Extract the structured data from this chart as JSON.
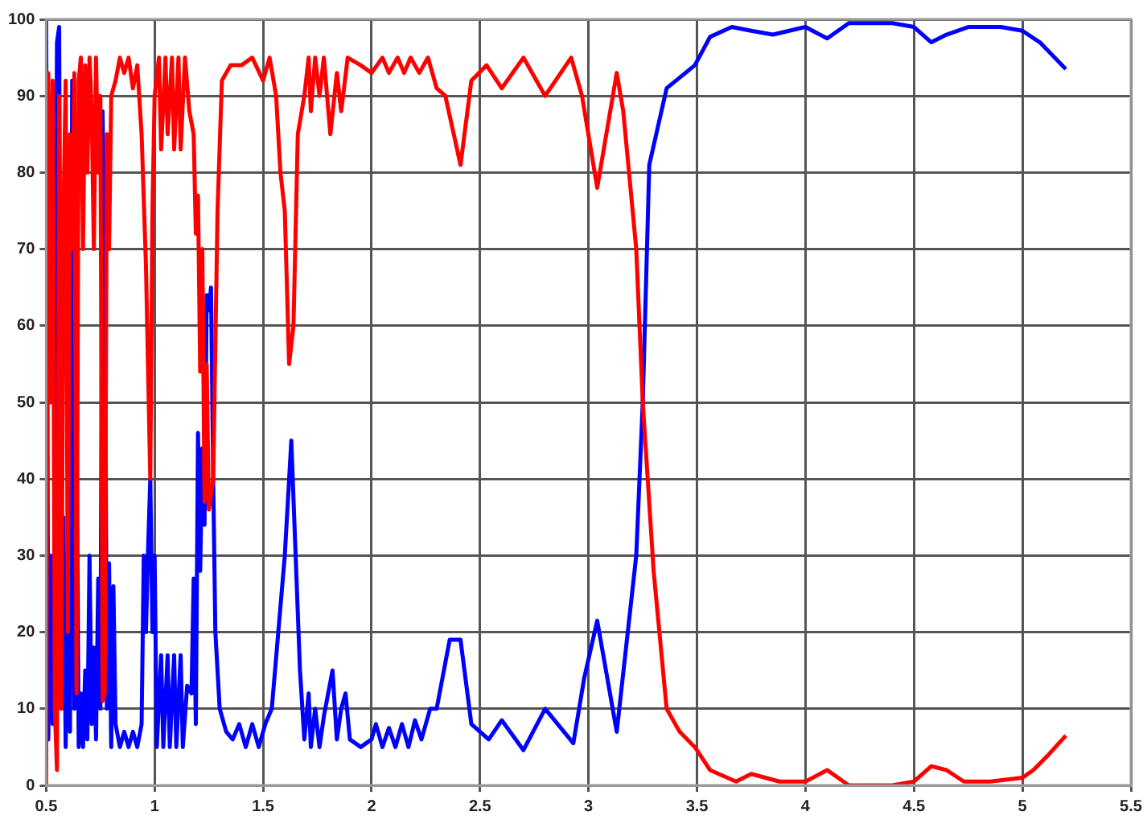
{
  "chart_data": {
    "type": "line",
    "xlim": [
      0.5,
      5.5
    ],
    "xticks": [
      0.5,
      1,
      1.5,
      2,
      2.5,
      3,
      3.5,
      4,
      4.5,
      5,
      5.5
    ],
    "ylim": [
      0,
      100
    ],
    "yticks": [
      0,
      10,
      20,
      30,
      40,
      50,
      60,
      70,
      80,
      90,
      100
    ],
    "grid": true,
    "marker": "none",
    "series": [
      {
        "color": "#ff0000",
        "x": [
          0.5,
          0.51,
          0.52,
          0.53,
          0.54,
          0.55,
          0.56,
          0.57,
          0.58,
          0.59,
          0.6,
          0.61,
          0.62,
          0.63,
          0.64,
          0.65,
          0.66,
          0.67,
          0.68,
          0.69,
          0.7,
          0.71,
          0.72,
          0.73,
          0.74,
          0.75,
          0.76,
          0.77,
          0.78,
          0.79,
          0.8,
          0.82,
          0.84,
          0.86,
          0.88,
          0.9,
          0.92,
          0.94,
          0.96,
          0.98,
          0.99,
          1,
          1.02,
          1.03,
          1.05,
          1.06,
          1.08,
          1.09,
          1.11,
          1.12,
          1.14,
          1.16,
          1.18,
          1.19,
          1.2,
          1.21,
          1.22,
          1.23,
          1.24,
          1.25,
          1.27,
          1.29,
          1.31,
          1.35,
          1.4,
          1.45,
          1.5,
          1.53,
          1.56,
          1.58,
          1.6,
          1.62,
          1.64,
          1.66,
          1.69,
          1.71,
          1.72,
          1.74,
          1.76,
          1.78,
          1.81,
          1.84,
          1.86,
          1.89,
          1.95,
          2,
          2.05,
          2.08,
          2.12,
          2.15,
          2.18,
          2.22,
          2.26,
          2.3,
          2.34,
          2.41,
          2.46,
          2.53,
          2.6,
          2.7,
          2.8,
          2.92,
          2.97,
          3.04,
          3.13,
          3.16,
          3.22,
          3.25,
          3.3,
          3.36,
          3.42,
          3.49,
          3.56,
          3.68,
          3.75,
          3.88,
          4,
          4.1,
          4.2,
          4.3,
          4.4,
          4.5,
          4.58,
          4.65,
          4.73,
          4.85,
          5,
          5.05,
          5.12,
          5.2
        ],
        "values": [
          0,
          93,
          50,
          92,
          10,
          2,
          90,
          10,
          75,
          92,
          20,
          85,
          70,
          93,
          12,
          92,
          95,
          70,
          94,
          80,
          95,
          88,
          70,
          95,
          80,
          90,
          11,
          12,
          85,
          70,
          90,
          92,
          95,
          93,
          95,
          91,
          94,
          85,
          68,
          40,
          75,
          90,
          95,
          83,
          95,
          85,
          95,
          83,
          95,
          83,
          95,
          88,
          85,
          72,
          77,
          54,
          70,
          37,
          55,
          36,
          40,
          75,
          92,
          94,
          94,
          95,
          92,
          95,
          90,
          80,
          75,
          55,
          60,
          85,
          90,
          95,
          88,
          95,
          90,
          95,
          85,
          93,
          88,
          95,
          94,
          93,
          95,
          93,
          95,
          93,
          95,
          93,
          95,
          91,
          90,
          81,
          92,
          94,
          91,
          95,
          90,
          95,
          90,
          78,
          93,
          88,
          70,
          50,
          28,
          10,
          7,
          5,
          2,
          0.5,
          1.5,
          0.5,
          0.5,
          2,
          0,
          0,
          0,
          0.5,
          2.5,
          2,
          0.5,
          0.5,
          1,
          2,
          4,
          6.5
        ]
      },
      {
        "color": "#0000ff",
        "x": [
          0.5,
          0.505,
          0.51,
          0.52,
          0.53,
          0.54,
          0.55,
          0.56,
          0.57,
          0.58,
          0.59,
          0.6,
          0.61,
          0.62,
          0.63,
          0.64,
          0.65,
          0.66,
          0.67,
          0.68,
          0.69,
          0.7,
          0.71,
          0.72,
          0.73,
          0.74,
          0.75,
          0.76,
          0.77,
          0.78,
          0.79,
          0.8,
          0.81,
          0.82,
          0.84,
          0.86,
          0.88,
          0.9,
          0.92,
          0.94,
          0.95,
          0.96,
          0.97,
          0.98,
          0.99,
          1,
          1.01,
          1.03,
          1.04,
          1.06,
          1.07,
          1.09,
          1.1,
          1.12,
          1.13,
          1.15,
          1.17,
          1.18,
          1.19,
          1.2,
          1.21,
          1.22,
          1.23,
          1.24,
          1.25,
          1.26,
          1.27,
          1.28,
          1.3,
          1.33,
          1.36,
          1.39,
          1.42,
          1.45,
          1.48,
          1.51,
          1.54,
          1.57,
          1.6,
          1.63,
          1.65,
          1.67,
          1.69,
          1.71,
          1.72,
          1.74,
          1.76,
          1.78,
          1.8,
          1.82,
          1.84,
          1.86,
          1.88,
          1.9,
          1.95,
          2,
          2.02,
          2.05,
          2.08,
          2.11,
          2.14,
          2.17,
          2.2,
          2.23,
          2.27,
          2.3,
          2.36,
          2.41,
          2.46,
          2.54,
          2.6,
          2.7,
          2.8,
          2.93,
          2.98,
          3.04,
          3.13,
          3.22,
          3.25,
          3.28,
          3.36,
          3.49,
          3.56,
          3.66,
          3.75,
          3.85,
          4,
          4.1,
          4.2,
          4.4,
          4.5,
          4.58,
          4.65,
          4.75,
          4.9,
          5,
          5.08,
          5.2
        ],
        "values": [
          100,
          60,
          6,
          30,
          8,
          40,
          97,
          99,
          10,
          35,
          5,
          28,
          7,
          92,
          10,
          50,
          5,
          12,
          5,
          15,
          6,
          30,
          8,
          18,
          6,
          27,
          10,
          88,
          70,
          10,
          29,
          5,
          26,
          8,
          5,
          7,
          5,
          7,
          5,
          8,
          30,
          20,
          31,
          40,
          20,
          30,
          5,
          17,
          5,
          17,
          5,
          17,
          5,
          17,
          5,
          13,
          12,
          27,
          8,
          46,
          28,
          44,
          34,
          64,
          62,
          65,
          40,
          20,
          10,
          7,
          6,
          8,
          5,
          8,
          5,
          8,
          10,
          20,
          30,
          45,
          30,
          15,
          6,
          12,
          5,
          10,
          5,
          9,
          12,
          15,
          6,
          10,
          12,
          6,
          5,
          6,
          8,
          5,
          7.5,
          5,
          8,
          5,
          8.5,
          6,
          10,
          10,
          19,
          19,
          8,
          6,
          8.5,
          4.6,
          10,
          5.5,
          14,
          21.5,
          7,
          30,
          50,
          81,
          91,
          94,
          97.7,
          99,
          98.5,
          98,
          99,
          97.5,
          99.5,
          99.5,
          99,
          97,
          98,
          99,
          99,
          98.5,
          97,
          93.5
        ]
      }
    ]
  }
}
